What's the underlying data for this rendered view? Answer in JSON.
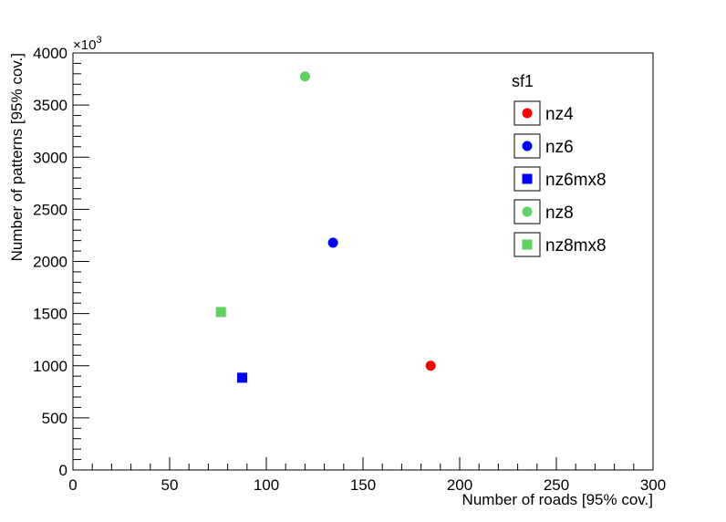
{
  "chart_data": {
    "type": "scatter",
    "title": "",
    "xlabel": "Number of roads [95% cov.]",
    "ylabel": "Number of patterns [95% cov.]",
    "y_multiplier": "×10",
    "y_multiplier_exp": "3",
    "xlim": [
      0,
      300
    ],
    "ylim": [
      0,
      4000
    ],
    "x_ticks": [
      0,
      50,
      100,
      150,
      200,
      250,
      300
    ],
    "y_ticks": [
      0,
      500,
      1000,
      1500,
      2000,
      2500,
      3000,
      3500,
      4000
    ],
    "grid": false,
    "legend": {
      "title": "sf1",
      "placement": "top-right"
    },
    "series": [
      {
        "name": "nz4",
        "marker": "circle",
        "color": "#ff0000",
        "points": [
          [
            185,
            1000
          ]
        ]
      },
      {
        "name": "nz6",
        "marker": "circle",
        "color": "#0000ff",
        "points": [
          [
            134.5,
            2180
          ]
        ]
      },
      {
        "name": "nz6mx8",
        "marker": "square",
        "color": "#0000ff",
        "points": [
          [
            87.5,
            885
          ]
        ]
      },
      {
        "name": "nz8",
        "marker": "circle",
        "color": "#5fd35f",
        "points": [
          [
            120,
            3775
          ]
        ]
      },
      {
        "name": "nz8mx8",
        "marker": "square",
        "color": "#5fd35f",
        "points": [
          [
            76.5,
            1515
          ]
        ]
      }
    ]
  }
}
